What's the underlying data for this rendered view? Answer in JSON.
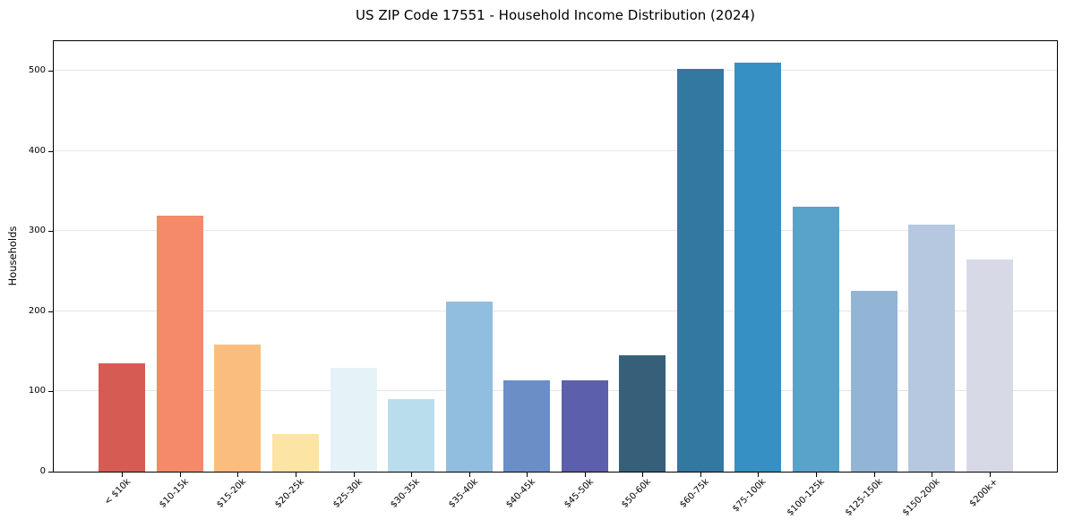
{
  "chart_data": {
    "type": "bar",
    "title": "US ZIP Code 17551 - Household Income Distribution (2024)",
    "xlabel": "",
    "ylabel": "Households",
    "categories": [
      "< $10k",
      "$10-15k",
      "$15-20k",
      "$20-25k",
      "$25-30k",
      "$30-35k",
      "$35-40k",
      "$40-45k",
      "$45-50k",
      "$50-60k",
      "$60-75k",
      "$75-100k",
      "$100-125k",
      "$125-150k",
      "$150-200k",
      "$200k+"
    ],
    "values": [
      135,
      319,
      159,
      47,
      130,
      90,
      212,
      114,
      114,
      145,
      502,
      510,
      330,
      225,
      308,
      264
    ],
    "bar_colors": [
      "#d65c53",
      "#f48a69",
      "#fabd7e",
      "#fce4a4",
      "#e5f2f8",
      "#badded",
      "#91bede",
      "#6a8fc6",
      "#5c5fab",
      "#36607a",
      "#32789f",
      "#3690c3",
      "#59a2c9",
      "#92b5d6",
      "#b6c8e0",
      "#d7d9e7"
    ],
    "yticks": [
      0,
      100,
      200,
      300,
      400,
      500
    ],
    "ylim": [
      0,
      536.7
    ],
    "grid": "horizontal-only",
    "grid_color": "#e6e6e6",
    "axis_color": "#000000",
    "background": "#ffffff",
    "legend_position": "none",
    "bar_width_fraction": 0.8
  }
}
